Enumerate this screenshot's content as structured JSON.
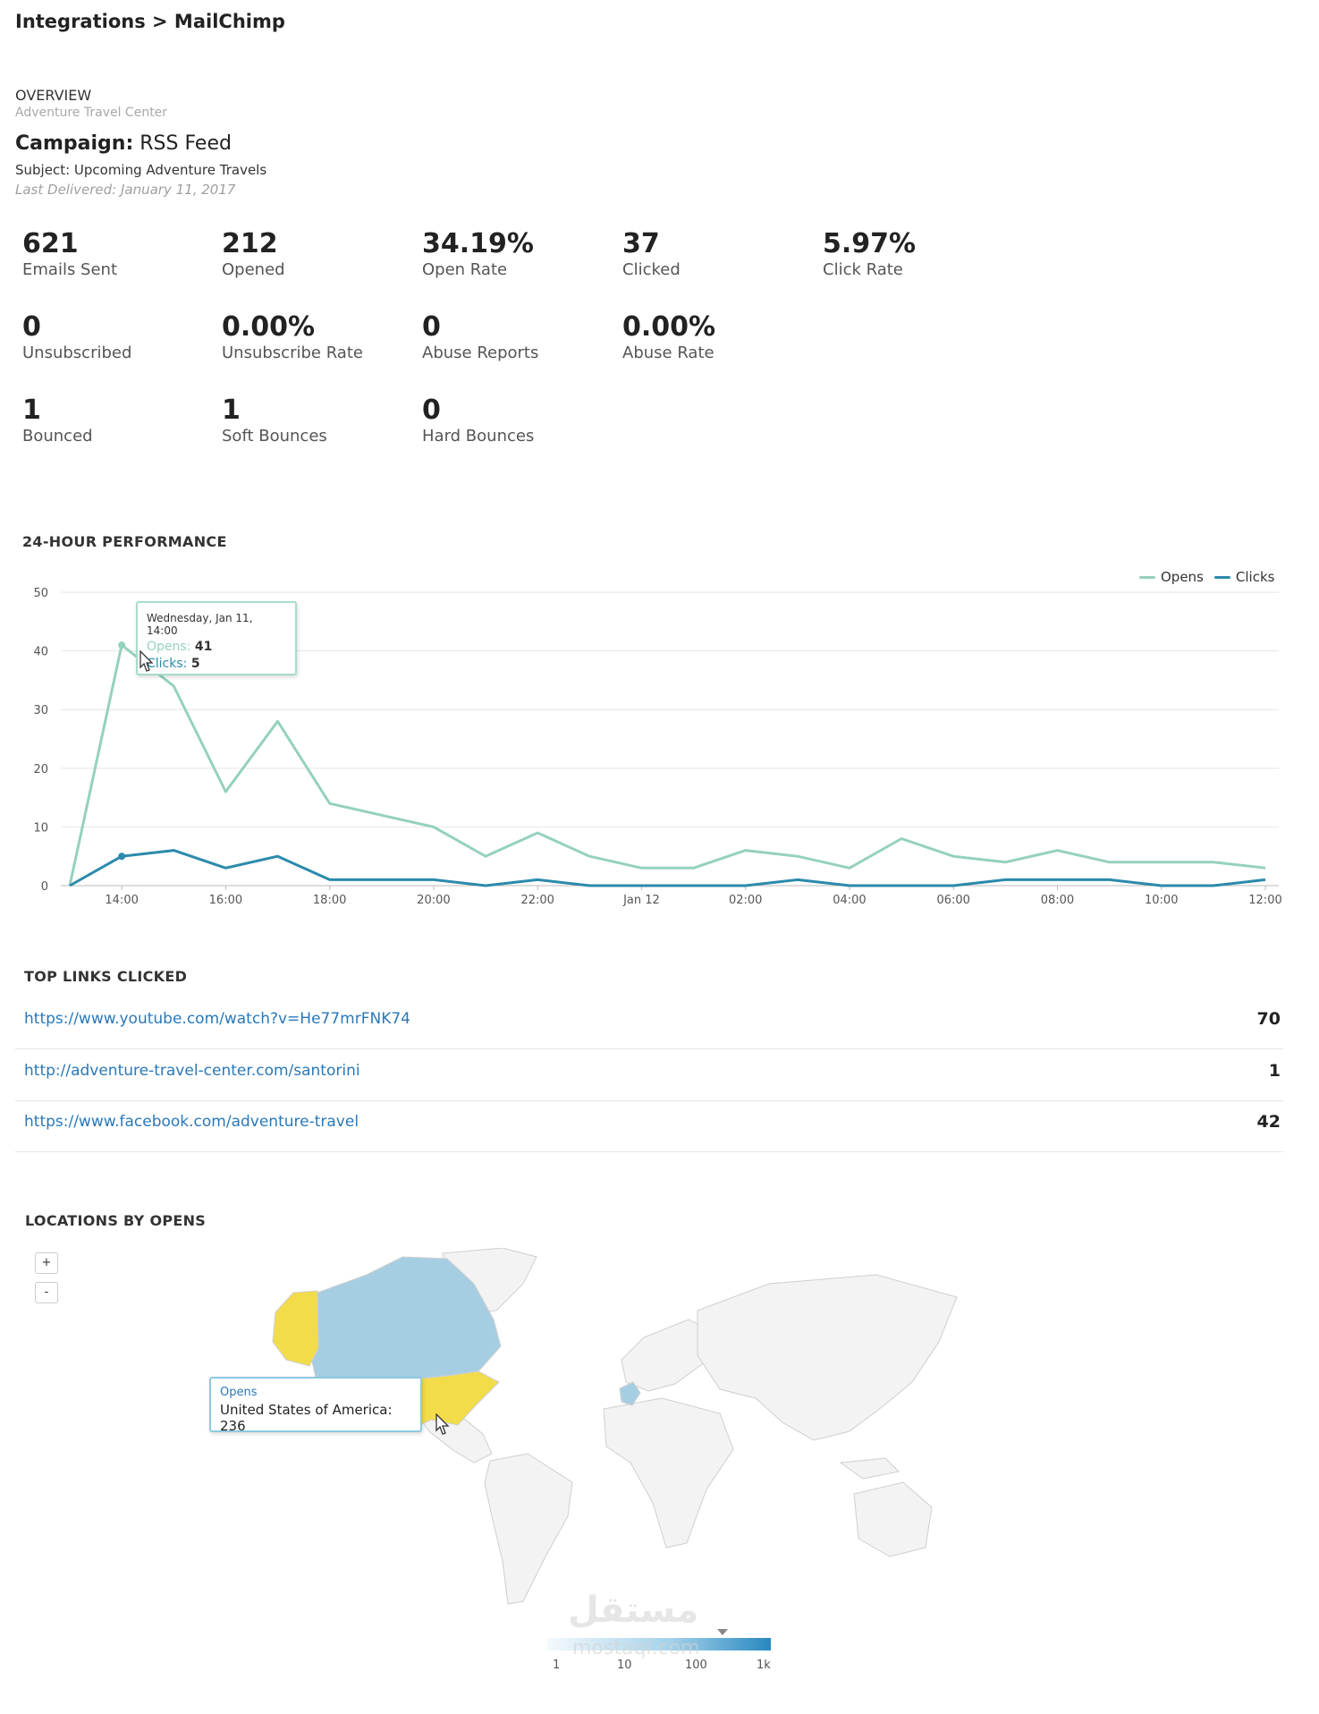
{
  "header": {
    "breadcrumb": "Integrations > MailChimp"
  },
  "overview": {
    "heading": "OVERVIEW",
    "account": "Adventure Travel Center",
    "campaign_label": "Campaign:",
    "campaign_name": "RSS Feed",
    "subject": "Subject: Upcoming Adventure Travels",
    "last_delivered": "Last Delivered: January 11, 2017"
  },
  "stats": [
    {
      "value": "621",
      "label": "Emails Sent"
    },
    {
      "value": "212",
      "label": "Opened"
    },
    {
      "value": "34.19%",
      "label": "Open Rate"
    },
    {
      "value": "37",
      "label": "Clicked"
    },
    {
      "value": "5.97%",
      "label": "Click Rate"
    },
    {
      "value": "0",
      "label": "Unsubscribed"
    },
    {
      "value": "0.00%",
      "label": "Unsubscribe Rate"
    },
    {
      "value": "0",
      "label": "Abuse Reports"
    },
    {
      "value": "0.00%",
      "label": "Abuse Rate"
    },
    {
      "value": "1",
      "label": "Bounced"
    },
    {
      "value": "1",
      "label": "Soft Bounces"
    },
    {
      "value": "0",
      "label": "Hard Bounces"
    }
  ],
  "performance": {
    "title": "24-HOUR PERFORMANCE",
    "tooltip": {
      "date": "Wednesday, Jan 11, 14:00",
      "opens_label": "Opens:",
      "opens_value": "41",
      "clicks_label": "Clicks:",
      "clicks_value": "5"
    }
  },
  "chart_data": {
    "type": "line",
    "title": "24-HOUR PERFORMANCE",
    "x": [
      "13:00",
      "14:00",
      "15:00",
      "16:00",
      "17:00",
      "18:00",
      "19:00",
      "20:00",
      "21:00",
      "22:00",
      "23:00",
      "Jan 12",
      "01:00",
      "02:00",
      "03:00",
      "04:00",
      "05:00",
      "06:00",
      "07:00",
      "08:00",
      "09:00",
      "10:00",
      "11:00",
      "12:00"
    ],
    "x_tick_labels": [
      "14:00",
      "16:00",
      "18:00",
      "20:00",
      "22:00",
      "Jan 12",
      "02:00",
      "04:00",
      "06:00",
      "08:00",
      "10:00",
      "12:00"
    ],
    "series": [
      {
        "name": "Opens",
        "color": "#95d1bd",
        "values": [
          0,
          41,
          34,
          16,
          28,
          14,
          12,
          10,
          5,
          9,
          5,
          3,
          3,
          6,
          5,
          3,
          8,
          5,
          4,
          6,
          4,
          4,
          4,
          3
        ]
      },
      {
        "name": "Clicks",
        "color": "#2b8aab",
        "values": [
          0,
          5,
          6,
          3,
          5,
          1,
          1,
          1,
          0,
          1,
          0,
          0,
          0,
          0,
          1,
          0,
          0,
          0,
          1,
          1,
          1,
          0,
          0,
          1
        ]
      }
    ],
    "ylim": [
      0,
      50
    ],
    "y_ticks": [
      0,
      10,
      20,
      30,
      40,
      50
    ],
    "grid": true,
    "legend_position": "top-right"
  },
  "links": {
    "title": "TOP LINKS CLICKED",
    "rows": [
      {
        "url": "https://www.youtube.com/watch?v=He77mrFNK74",
        "count": "70"
      },
      {
        "url": "http://adventure-travel-center.com/santorini",
        "count": "1"
      },
      {
        "url": "https://www.facebook.com/adventure-travel",
        "count": "42"
      }
    ]
  },
  "locations": {
    "title": "LOCATIONS BY OPENS",
    "zoom_in": "+",
    "zoom_out": "-",
    "tooltip": {
      "series": "Opens",
      "text": "United States of America: 236"
    },
    "colorbar_ticks": [
      "1",
      "10",
      "100",
      "1k"
    ],
    "colors": {
      "highlight": "#f2dc4a",
      "region": "#a5cee3",
      "land": "#f3f3f3",
      "border": "#cfcfcf"
    }
  },
  "watermark": {
    "arabic": "مستقل",
    "latin": "mostaqi.com"
  }
}
